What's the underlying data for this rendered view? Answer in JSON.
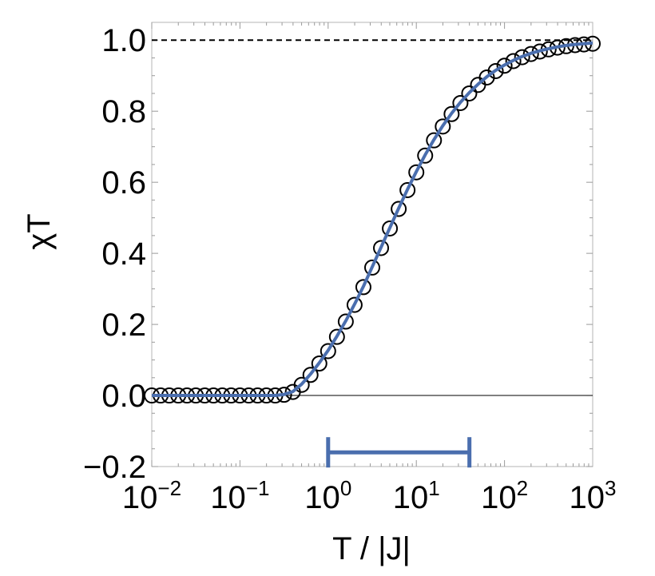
{
  "chart_data": {
    "type": "scatter",
    "xlabel": "T / |J|",
    "ylabel": "χT",
    "xscale": "log",
    "xlim": [
      0.01,
      1000
    ],
    "ylim": [
      -0.2,
      1.05
    ],
    "x_ticks": [
      {
        "base": "10",
        "exp": "−2",
        "value": 0.01
      },
      {
        "base": "10",
        "exp": "−1",
        "value": 0.1
      },
      {
        "base": "10",
        "exp": "0",
        "value": 1
      },
      {
        "base": "10",
        "exp": "1",
        "value": 10
      },
      {
        "base": "10",
        "exp": "2",
        "value": 100
      },
      {
        "base": "10",
        "exp": "3",
        "value": 1000
      }
    ],
    "y_ticks": [
      {
        "label": "−0.2",
        "value": -0.2
      },
      {
        "label": "0.0",
        "value": 0.0
      },
      {
        "label": "0.2",
        "value": 0.2
      },
      {
        "label": "0.4",
        "value": 0.4
      },
      {
        "label": "0.6",
        "value": 0.6
      },
      {
        "label": "0.8",
        "value": 0.8
      },
      {
        "label": "1.0",
        "value": 1.0
      }
    ],
    "reference_line": {
      "y": 1.0,
      "style": "dashed",
      "color": "#000000"
    },
    "zero_line": {
      "y": 0.0,
      "color": "#000000"
    },
    "series": [
      {
        "kind": "markers",
        "marker": "open-circle",
        "color": "#000000",
        "points": [
          [
            0.01,
            0.0
          ],
          [
            0.0126,
            0.0
          ],
          [
            0.0158,
            0.0
          ],
          [
            0.02,
            0.0
          ],
          [
            0.0251,
            0.0
          ],
          [
            0.0316,
            0.0
          ],
          [
            0.0398,
            0.0
          ],
          [
            0.0501,
            0.0
          ],
          [
            0.0631,
            0.0
          ],
          [
            0.0794,
            0.0
          ],
          [
            0.1,
            0.0
          ],
          [
            0.1259,
            0.0
          ],
          [
            0.1585,
            0.0
          ],
          [
            0.1995,
            0.0
          ],
          [
            0.2512,
            0.0
          ],
          [
            0.3162,
            0.002
          ],
          [
            0.3981,
            0.01
          ],
          [
            0.5012,
            0.03
          ],
          [
            0.631,
            0.058
          ],
          [
            0.7943,
            0.09
          ],
          [
            1.0,
            0.125
          ],
          [
            1.2589,
            0.165
          ],
          [
            1.5849,
            0.208
          ],
          [
            1.9953,
            0.255
          ],
          [
            2.5119,
            0.305
          ],
          [
            3.1623,
            0.36
          ],
          [
            3.9811,
            0.415
          ],
          [
            5.0119,
            0.47
          ],
          [
            6.3096,
            0.525
          ],
          [
            7.9433,
            0.578
          ],
          [
            10.0,
            0.628
          ],
          [
            12.589,
            0.675
          ],
          [
            15.849,
            0.718
          ],
          [
            19.953,
            0.757
          ],
          [
            25.119,
            0.792
          ],
          [
            31.623,
            0.823
          ],
          [
            39.811,
            0.85
          ],
          [
            50.119,
            0.874
          ],
          [
            63.096,
            0.895
          ],
          [
            79.433,
            0.913
          ],
          [
            100.0,
            0.928
          ],
          [
            125.89,
            0.941
          ],
          [
            158.49,
            0.952
          ],
          [
            199.53,
            0.961
          ],
          [
            251.19,
            0.968
          ],
          [
            316.23,
            0.974
          ],
          [
            398.11,
            0.979
          ],
          [
            501.19,
            0.983
          ],
          [
            630.96,
            0.986
          ],
          [
            794.33,
            0.988
          ],
          [
            1000.0,
            0.99
          ]
        ]
      },
      {
        "kind": "line",
        "color": "#4a6eae",
        "points": [
          [
            0.01,
            0.0
          ],
          [
            0.1,
            0.0
          ],
          [
            0.2512,
            0.0
          ],
          [
            0.3162,
            0.003
          ],
          [
            0.3981,
            0.011
          ],
          [
            0.5012,
            0.032
          ],
          [
            0.631,
            0.06
          ],
          [
            0.7943,
            0.092
          ],
          [
            1.0,
            0.127
          ],
          [
            1.2589,
            0.167
          ],
          [
            1.5849,
            0.21
          ],
          [
            1.9953,
            0.257
          ],
          [
            2.5119,
            0.307
          ],
          [
            3.1623,
            0.362
          ],
          [
            3.9811,
            0.417
          ],
          [
            5.0119,
            0.472
          ],
          [
            6.3096,
            0.527
          ],
          [
            7.9433,
            0.58
          ],
          [
            10.0,
            0.63
          ],
          [
            12.589,
            0.677
          ],
          [
            15.849,
            0.72
          ],
          [
            19.953,
            0.759
          ],
          [
            25.119,
            0.794
          ],
          [
            31.623,
            0.825
          ],
          [
            39.811,
            0.852
          ],
          [
            50.119,
            0.876
          ],
          [
            63.096,
            0.897
          ],
          [
            79.433,
            0.915
          ],
          [
            100.0,
            0.93
          ],
          [
            125.89,
            0.943
          ],
          [
            158.49,
            0.954
          ],
          [
            199.53,
            0.963
          ],
          [
            251.19,
            0.97
          ],
          [
            316.23,
            0.976
          ],
          [
            398.11,
            0.981
          ],
          [
            501.19,
            0.985
          ],
          [
            630.96,
            0.988
          ],
          [
            794.33,
            0.99
          ],
          [
            1000.0,
            0.992
          ]
        ]
      }
    ],
    "range_bar": {
      "x_start": 1.0,
      "x_end": 40.0,
      "y": -0.16,
      "color": "#4a6eae"
    },
    "grid": false
  }
}
